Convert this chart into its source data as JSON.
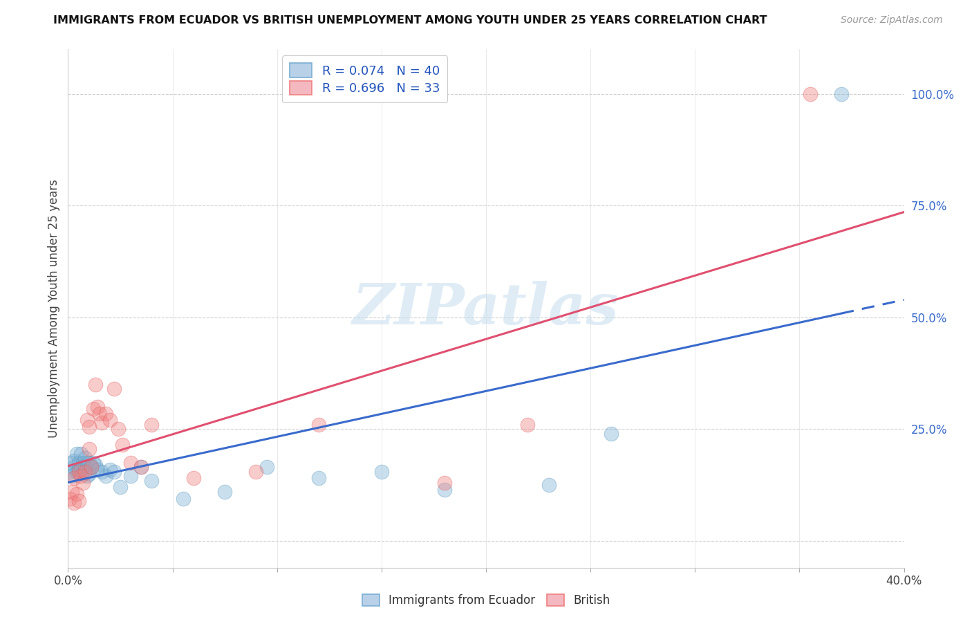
{
  "title": "IMMIGRANTS FROM ECUADOR VS BRITISH UNEMPLOYMENT AMONG YOUTH UNDER 25 YEARS CORRELATION CHART",
  "source": "Source: ZipAtlas.com",
  "ylabel": "Unemployment Among Youth under 25 years",
  "watermark": "ZIPatlas",
  "legend_label1": "Immigrants from Ecuador",
  "legend_label2": "British",
  "R1": "0.074",
  "N1": "40",
  "R2": "0.696",
  "N2": "33",
  "color_blue": "#7bafd4",
  "color_pink": "#f08080",
  "color_blue_edge": "#5a9abf",
  "color_pink_edge": "#e06060",
  "color_trend_blue": "#3a6bcc",
  "color_trend_pink": "#e05070",
  "blue_x": [
    0.001,
    0.002,
    0.002,
    0.003,
    0.003,
    0.004,
    0.004,
    0.005,
    0.005,
    0.006,
    0.006,
    0.007,
    0.007,
    0.008,
    0.008,
    0.009,
    0.009,
    0.01,
    0.01,
    0.011,
    0.012,
    0.013,
    0.014,
    0.016,
    0.018,
    0.02,
    0.022,
    0.025,
    0.03,
    0.035,
    0.04,
    0.055,
    0.075,
    0.095,
    0.12,
    0.15,
    0.18,
    0.23,
    0.26,
    0.37
  ],
  "blue_y": [
    0.155,
    0.145,
    0.175,
    0.165,
    0.18,
    0.155,
    0.195,
    0.16,
    0.175,
    0.16,
    0.195,
    0.15,
    0.175,
    0.165,
    0.185,
    0.145,
    0.175,
    0.175,
    0.15,
    0.165,
    0.175,
    0.17,
    0.16,
    0.155,
    0.145,
    0.16,
    0.155,
    0.12,
    0.145,
    0.165,
    0.135,
    0.095,
    0.11,
    0.165,
    0.14,
    0.155,
    0.115,
    0.125,
    0.24,
    1.0
  ],
  "pink_x": [
    0.001,
    0.002,
    0.003,
    0.003,
    0.004,
    0.005,
    0.005,
    0.006,
    0.007,
    0.008,
    0.009,
    0.01,
    0.01,
    0.011,
    0.012,
    0.013,
    0.014,
    0.015,
    0.016,
    0.018,
    0.02,
    0.022,
    0.024,
    0.026,
    0.03,
    0.035,
    0.04,
    0.06,
    0.09,
    0.12,
    0.18,
    0.22,
    0.355
  ],
  "pink_y": [
    0.095,
    0.11,
    0.085,
    0.14,
    0.105,
    0.09,
    0.155,
    0.145,
    0.13,
    0.155,
    0.27,
    0.205,
    0.255,
    0.165,
    0.295,
    0.35,
    0.3,
    0.285,
    0.265,
    0.285,
    0.27,
    0.34,
    0.25,
    0.215,
    0.175,
    0.165,
    0.26,
    0.14,
    0.155,
    0.26,
    0.13,
    0.26,
    1.0
  ],
  "xmin": 0.0,
  "xmax": 0.4,
  "ymin": -0.06,
  "ymax": 1.1,
  "ytick_positions": [
    0.0,
    0.25,
    0.5,
    0.75,
    1.0
  ],
  "ytick_labels_right": [
    "",
    "25.0%",
    "50.0%",
    "75.0%",
    "100.0%"
  ],
  "xtick_vals": [
    0.0,
    0.05,
    0.1,
    0.15,
    0.2,
    0.25,
    0.3,
    0.35,
    0.4
  ],
  "xtick_labels": [
    "0.0%",
    "",
    "",
    "",
    "",
    "",
    "",
    "",
    "40.0%"
  ]
}
